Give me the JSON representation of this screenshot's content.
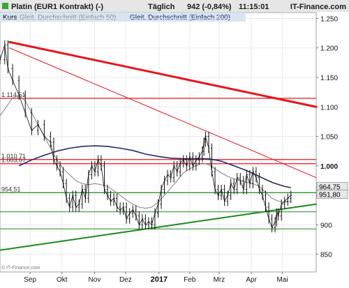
{
  "header": {
    "instrument": "Platin (EUR1 Kontrakt) (-)",
    "interval": "Täglich",
    "quote": "942 (-0,84%)",
    "time": "11:15:01",
    "brand": "IT-Finance.com",
    "copyright": "© IT-Finance.com"
  },
  "legend": [
    {
      "label": "Kurs",
      "color": "#000000"
    },
    {
      "label": "Gleit. Durchschnitt (Einfach 50)",
      "color": "#8c8c8c"
    },
    {
      "label": "Gleit. Durchschnitt (Einfach 200)",
      "color": "#1f2a6e"
    }
  ],
  "colors": {
    "price": "#111111",
    "ma50": "#8c8c8c",
    "ma200": "#1f2a6e",
    "resistance": "#e8141b",
    "support": "#1a8a1a",
    "header_bg": "#e6e6e6",
    "legend_bg": "#d8e4f4",
    "tag_bg": "#e8e8e8"
  },
  "chart_data": {
    "type": "line",
    "title": "Platin (EUR1 Kontrakt) (-)",
    "ylim": [
      820,
      1260
    ],
    "y_ticks": [
      1250,
      1200,
      1150,
      1100,
      1050,
      1000,
      950,
      900,
      850
    ],
    "y_tick_labels": [
      "1.250",
      "1.200",
      "1.150",
      "1.100",
      "1.050",
      "1.000",
      "950",
      "900",
      "850"
    ],
    "x_ticks": [
      {
        "label": "Sep",
        "pos": 0.095,
        "bold": false
      },
      {
        "label": "Okt",
        "pos": 0.196,
        "bold": false
      },
      {
        "label": "Nov",
        "pos": 0.299,
        "bold": false
      },
      {
        "label": "Dez",
        "pos": 0.397,
        "bold": false
      },
      {
        "label": "2017",
        "pos": 0.503,
        "bold": true
      },
      {
        "label": "Feb",
        "pos": 0.6,
        "bold": false
      },
      {
        "label": "Mrz",
        "pos": 0.693,
        "bold": false
      },
      {
        "label": "Apr",
        "pos": 0.795,
        "bold": false
      },
      {
        "label": "Mai",
        "pos": 0.893,
        "bold": false
      }
    ],
    "price_path": [
      [
        0.0,
        1180
      ],
      [
        0.015,
        1205
      ],
      [
        0.025,
        1165
      ],
      [
        0.04,
        1145
      ],
      [
        0.06,
        1120
      ],
      [
        0.08,
        1090
      ],
      [
        0.1,
        1060
      ],
      [
        0.12,
        1070
      ],
      [
        0.14,
        1050
      ],
      [
        0.16,
        1040
      ],
      [
        0.17,
        1010
      ],
      [
        0.18,
        1000
      ],
      [
        0.19,
        990
      ],
      [
        0.2,
        970
      ],
      [
        0.21,
        945
      ],
      [
        0.22,
        930
      ],
      [
        0.23,
        950
      ],
      [
        0.24,
        930
      ],
      [
        0.25,
        935
      ],
      [
        0.26,
        960
      ],
      [
        0.27,
        945
      ],
      [
        0.28,
        985
      ],
      [
        0.29,
        1000
      ],
      [
        0.3,
        990
      ],
      [
        0.31,
        1010
      ],
      [
        0.32,
        1000
      ],
      [
        0.33,
        960
      ],
      [
        0.34,
        950
      ],
      [
        0.35,
        940
      ],
      [
        0.36,
        945
      ],
      [
        0.37,
        930
      ],
      [
        0.38,
        925
      ],
      [
        0.39,
        930
      ],
      [
        0.4,
        910
      ],
      [
        0.41,
        920
      ],
      [
        0.42,
        925
      ],
      [
        0.43,
        915
      ],
      [
        0.44,
        900
      ],
      [
        0.45,
        910
      ],
      [
        0.46,
        900
      ],
      [
        0.47,
        905
      ],
      [
        0.48,
        900
      ],
      [
        0.49,
        920
      ],
      [
        0.5,
        935
      ],
      [
        0.51,
        960
      ],
      [
        0.52,
        975
      ],
      [
        0.53,
        985
      ],
      [
        0.54,
        980
      ],
      [
        0.55,
        1000
      ],
      [
        0.56,
        990
      ],
      [
        0.57,
        1005
      ],
      [
        0.58,
        1010
      ],
      [
        0.59,
        1000
      ],
      [
        0.6,
        1015
      ],
      [
        0.61,
        1000
      ],
      [
        0.62,
        1010
      ],
      [
        0.63,
        1015
      ],
      [
        0.64,
        1025
      ],
      [
        0.645,
        1040
      ],
      [
        0.65,
        1050
      ],
      [
        0.66,
        1030
      ],
      [
        0.67,
        990
      ],
      [
        0.68,
        960
      ],
      [
        0.69,
        950
      ],
      [
        0.7,
        960
      ],
      [
        0.71,
        940
      ],
      [
        0.72,
        950
      ],
      [
        0.73,
        970
      ],
      [
        0.74,
        960
      ],
      [
        0.75,
        980
      ],
      [
        0.76,
        975
      ],
      [
        0.77,
        960
      ],
      [
        0.78,
        985
      ],
      [
        0.79,
        970
      ],
      [
        0.8,
        990
      ],
      [
        0.81,
        980
      ],
      [
        0.82,
        960
      ],
      [
        0.83,
        950
      ],
      [
        0.84,
        930
      ],
      [
        0.85,
        910
      ],
      [
        0.86,
        895
      ],
      [
        0.87,
        905
      ],
      [
        0.875,
        920
      ],
      [
        0.88,
        915
      ],
      [
        0.89,
        935
      ],
      [
        0.9,
        940
      ],
      [
        0.91,
        945
      ],
      [
        0.92,
        950
      ]
    ],
    "ma50_path": [
      [
        0.0,
        1085
      ],
      [
        0.02,
        1100
      ],
      [
        0.04,
        1115
      ],
      [
        0.06,
        1120
      ],
      [
        0.08,
        1110
      ],
      [
        0.1,
        1090
      ],
      [
        0.12,
        1070
      ],
      [
        0.14,
        1050
      ],
      [
        0.16,
        1030
      ],
      [
        0.18,
        1010
      ],
      [
        0.2,
        995
      ],
      [
        0.22,
        985
      ],
      [
        0.24,
        975
      ],
      [
        0.26,
        970
      ],
      [
        0.28,
        968
      ],
      [
        0.3,
        970
      ],
      [
        0.32,
        968
      ],
      [
        0.34,
        965
      ],
      [
        0.36,
        958
      ],
      [
        0.38,
        950
      ],
      [
        0.4,
        942
      ],
      [
        0.42,
        935
      ],
      [
        0.44,
        930
      ],
      [
        0.46,
        928
      ],
      [
        0.48,
        930
      ],
      [
        0.5,
        938
      ],
      [
        0.52,
        950
      ],
      [
        0.54,
        962
      ],
      [
        0.56,
        975
      ],
      [
        0.58,
        988
      ],
      [
        0.6,
        995
      ],
      [
        0.62,
        1000
      ],
      [
        0.64,
        1005
      ],
      [
        0.66,
        1002
      ],
      [
        0.68,
        995
      ],
      [
        0.7,
        988
      ],
      [
        0.72,
        982
      ],
      [
        0.74,
        978
      ],
      [
        0.76,
        975
      ],
      [
        0.78,
        972
      ],
      [
        0.8,
        970
      ],
      [
        0.82,
        965
      ],
      [
        0.84,
        955
      ],
      [
        0.86,
        945
      ],
      [
        0.88,
        940
      ],
      [
        0.9,
        938
      ],
      [
        0.92,
        940
      ]
    ],
    "ma200_path": [
      [
        0.06,
        1000
      ],
      [
        0.1,
        1010
      ],
      [
        0.14,
        1018
      ],
      [
        0.18,
        1025
      ],
      [
        0.22,
        1030
      ],
      [
        0.26,
        1033
      ],
      [
        0.3,
        1034
      ],
      [
        0.34,
        1033
      ],
      [
        0.38,
        1030
      ],
      [
        0.42,
        1026
      ],
      [
        0.46,
        1020
      ],
      [
        0.5,
        1016
      ],
      [
        0.54,
        1013
      ],
      [
        0.58,
        1012
      ],
      [
        0.62,
        1012
      ],
      [
        0.66,
        1012
      ],
      [
        0.7,
        1008
      ],
      [
        0.74,
        1000
      ],
      [
        0.78,
        992
      ],
      [
        0.82,
        982
      ],
      [
        0.86,
        972
      ],
      [
        0.9,
        965
      ],
      [
        0.92,
        963
      ]
    ],
    "horizontal_lines": [
      {
        "value": 1114.51,
        "label": "1.114,51",
        "color": "#e8141b",
        "width": 1.2
      },
      {
        "value": 1010.71,
        "label": "1.010,71",
        "color": "#e8141b",
        "width": 1.2
      },
      {
        "value": 1003.67,
        "label": "1.003,67",
        "color": "#e8141b",
        "width": 1.2
      },
      {
        "value": 954.51,
        "label": "954,51",
        "color": "#1a8a1a",
        "width": 1.2
      },
      {
        "value": 922,
        "label": "",
        "color": "#1a8a1a",
        "width": 1.0
      },
      {
        "value": 893,
        "label": "",
        "color": "#1a8a1a",
        "width": 1.0
      }
    ],
    "trend_lines": [
      {
        "from": [
          0.03,
          1210
        ],
        "to": [
          1.0,
          1100
        ],
        "color": "#e8141b",
        "width": 3
      },
      {
        "from": [
          0.03,
          1200
        ],
        "to": [
          1.0,
          980
        ],
        "color": "#e8141b",
        "width": 1
      },
      {
        "from": [
          0.0,
          857
        ],
        "to": [
          1.0,
          935
        ],
        "color": "#1a8a1a",
        "width": 2
      }
    ],
    "price_tags": [
      {
        "label": "964,75",
        "value": 964.75
      },
      {
        "label": "951,80",
        "value": 951.8
      }
    ],
    "major_level_label": "1.000"
  }
}
